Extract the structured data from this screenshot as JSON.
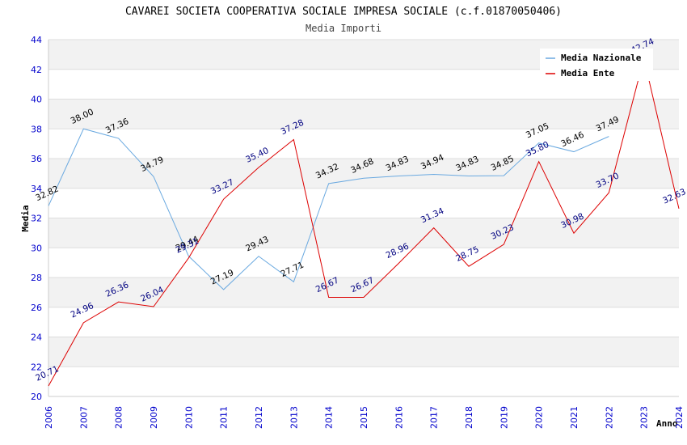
{
  "chart_data": {
    "type": "line",
    "title": "CAVAREI SOCIETA COOPERATIVA SOCIALE IMPRESA SOCIALE (c.f.01870050406)",
    "subtitle": "Media Importi",
    "xlabel": "Anno",
    "ylabel": "Media",
    "ylim": [
      20,
      44
    ],
    "yticks": [
      "20",
      "22",
      "24",
      "26",
      "28",
      "30",
      "32",
      "34",
      "36",
      "38",
      "40",
      "42",
      "44"
    ],
    "x": [
      "2006",
      "2007",
      "2008",
      "2009",
      "2010",
      "2011",
      "2012",
      "2013",
      "2014",
      "2015",
      "2016",
      "2017",
      "2018",
      "2019",
      "2020",
      "2021",
      "2022",
      "2023",
      "2024"
    ],
    "grid": true,
    "legend_position": "top-right",
    "series": [
      {
        "name": "Media Nazionale",
        "color": "#6aa9e0",
        "label_color": "#000000",
        "values": [
          32.82,
          38.0,
          37.36,
          34.79,
          29.44,
          27.19,
          29.43,
          27.71,
          34.32,
          34.68,
          34.83,
          34.94,
          34.83,
          34.85,
          37.05,
          36.46,
          37.49,
          null,
          null
        ],
        "labels": [
          "32.82",
          "38.00",
          "37.36",
          "34.79",
          "29.44",
          "27.19",
          "29.43",
          "27.71",
          "34.32",
          "34.68",
          "34.83",
          "34.94",
          "34.83",
          "34.85",
          "37.05",
          "36.46",
          "37.49",
          "",
          ""
        ]
      },
      {
        "name": "Media Ente",
        "color": "#dd0000",
        "label_color": "#000080",
        "values": [
          20.71,
          24.96,
          26.36,
          26.04,
          29.31,
          33.27,
          35.4,
          37.28,
          26.67,
          26.67,
          28.96,
          31.34,
          28.75,
          30.23,
          35.8,
          30.98,
          33.7,
          42.74,
          32.63
        ],
        "labels": [
          "20.71",
          "24.96",
          "26.36",
          "26.04",
          "29.31",
          "33.27",
          "35.40",
          "37.28",
          "26.67",
          "26.67",
          "28.96",
          "31.34",
          "28.75",
          "30.23",
          "35.80",
          "30.98",
          "33.70",
          "42.74",
          "32.63"
        ]
      }
    ]
  }
}
